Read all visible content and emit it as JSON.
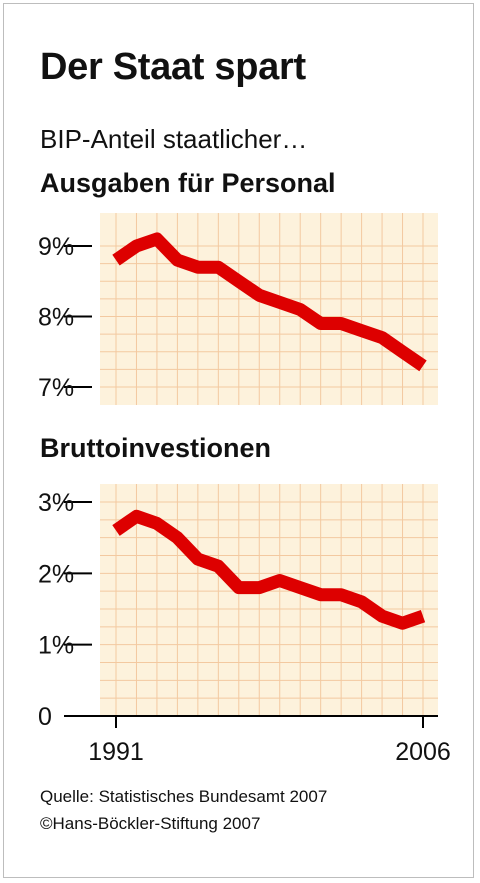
{
  "title": "Der Staat spart",
  "subtitle": "BIP-Anteil staatlicher…",
  "source": "Quelle: Statistisches Bundesamt 2007",
  "copyright": "©Hans-Böckler-Stiftung 2007",
  "colors": {
    "line": "#dd0000",
    "background": "#fdf2dc",
    "grid": "#f3c9a0",
    "axis": "#000000"
  },
  "chart_data": [
    {
      "type": "line",
      "title": "Ausgaben für Personal",
      "x": [
        1991,
        1992,
        1993,
        1994,
        1995,
        1996,
        1997,
        1998,
        1999,
        2000,
        2001,
        2002,
        2003,
        2004,
        2005,
        2006
      ],
      "values": [
        8.8,
        9.0,
        9.1,
        8.8,
        8.7,
        8.7,
        8.5,
        8.3,
        8.2,
        8.1,
        7.9,
        7.9,
        7.8,
        7.7,
        7.5,
        7.3
      ],
      "ylim": [
        7,
        9
      ],
      "yticks": [
        {
          "value": 9,
          "label": "9%"
        },
        {
          "value": 8,
          "label": "8%"
        },
        {
          "value": 7,
          "label": "7%"
        }
      ],
      "grid": true
    },
    {
      "type": "line",
      "title": "Bruttoinvestionen",
      "x": [
        1991,
        1992,
        1993,
        1994,
        1995,
        1996,
        1997,
        1998,
        1999,
        2000,
        2001,
        2002,
        2003,
        2004,
        2005,
        2006
      ],
      "values": [
        2.6,
        2.8,
        2.7,
        2.5,
        2.2,
        2.1,
        1.8,
        1.8,
        1.9,
        1.8,
        1.7,
        1.7,
        1.6,
        1.4,
        1.3,
        1.4
      ],
      "ylim": [
        0,
        3
      ],
      "yticks": [
        {
          "value": 3,
          "label": "3%"
        },
        {
          "value": 2,
          "label": "2%"
        },
        {
          "value": 1,
          "label": "1%"
        },
        {
          "value": 0,
          "label": "0"
        }
      ],
      "xticks": [
        {
          "value": 1991,
          "label": "1991"
        },
        {
          "value": 2006,
          "label": "2006"
        }
      ],
      "grid": true
    }
  ]
}
